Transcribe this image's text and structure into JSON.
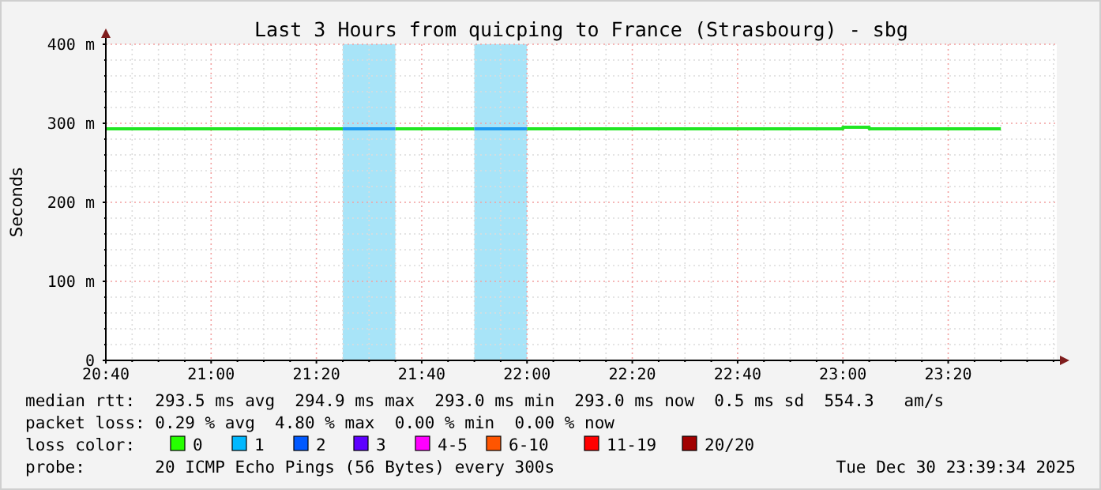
{
  "chart_data": {
    "type": "line",
    "title": "Last 3 Hours from quicping to France (Strasbourg) - sbg",
    "ylabel": "Seconds",
    "xlim": [
      20.6667,
      23.677
    ],
    "ylim": [
      0,
      400
    ],
    "xticks": [
      {
        "value": 20.6667,
        "label": "20:40"
      },
      {
        "value": 21,
        "label": "21:00"
      },
      {
        "value": 21.3333,
        "label": "21:20"
      },
      {
        "value": 21.6667,
        "label": "21:40"
      },
      {
        "value": 22,
        "label": "22:00"
      },
      {
        "value": 22.3333,
        "label": "22:20"
      },
      {
        "value": 22.6667,
        "label": "22:40"
      },
      {
        "value": 23,
        "label": "23:00"
      },
      {
        "value": 23.3333,
        "label": "23:20"
      },
      {
        "value": 20.75,
        "label": null
      },
      {
        "value": 20.8333,
        "label": null
      },
      {
        "value": 20.9167,
        "label": null
      },
      {
        "value": 21.0833,
        "label": null
      },
      {
        "value": 21.1667,
        "label": null
      },
      {
        "value": 21.25,
        "label": null
      },
      {
        "value": 21.4167,
        "label": null
      },
      {
        "value": 21.5,
        "label": null
      },
      {
        "value": 21.5833,
        "label": null
      },
      {
        "value": 21.75,
        "label": null
      },
      {
        "value": 21.8333,
        "label": null
      },
      {
        "value": 21.9167,
        "label": null
      },
      {
        "value": 22.0833,
        "label": null
      },
      {
        "value": 22.1667,
        "label": null
      },
      {
        "value": 22.25,
        "label": null
      },
      {
        "value": 22.4167,
        "label": null
      },
      {
        "value": 22.5,
        "label": null
      },
      {
        "value": 22.5833,
        "label": null
      },
      {
        "value": 22.75,
        "label": null
      },
      {
        "value": 22.8333,
        "label": null
      },
      {
        "value": 22.9167,
        "label": null
      },
      {
        "value": 23.0833,
        "label": null
      },
      {
        "value": 23.1667,
        "label": null
      },
      {
        "value": 23.25,
        "label": null
      },
      {
        "value": 23.4167,
        "label": null
      },
      {
        "value": 23.5,
        "label": null
      },
      {
        "value": 23.5833,
        "label": null
      },
      {
        "value": 23.6667,
        "label": null
      }
    ],
    "yticks": [
      0,
      {
        "value": 100,
        "label": "100 m"
      },
      {
        "value": 200,
        "label": "200 m"
      },
      {
        "value": 300,
        "label": "300 m"
      },
      {
        "value": 400,
        "label": "400 m"
      },
      {
        "value": 20,
        "label": null
      },
      {
        "value": 40,
        "label": null
      },
      {
        "value": 60,
        "label": null
      },
      {
        "value": 80,
        "label": null
      },
      {
        "value": 120,
        "label": null
      },
      {
        "value": 140,
        "label": null
      },
      {
        "value": 160,
        "label": null
      },
      {
        "value": 180,
        "label": null
      },
      {
        "value": 220,
        "label": null
      },
      {
        "value": 240,
        "label": null
      },
      {
        "value": 260,
        "label": null
      },
      {
        "value": 280,
        "label": null
      },
      {
        "value": 320,
        "label": null
      },
      {
        "value": 340,
        "label": null
      },
      {
        "value": 360,
        "label": null
      },
      {
        "value": 380,
        "label": null
      }
    ],
    "grid": true,
    "bands": [
      {
        "axis": "x",
        "from": 21.4167,
        "to": 21.5833,
        "color": "#a8e4f8"
      },
      {
        "axis": "x",
        "from": 21.8333,
        "to": 22.0,
        "color": "#a8e4f8"
      }
    ],
    "series": [
      {
        "color": "#22e622",
        "x": [
          20.6667,
          21.4167,
          21.4168,
          21.5833,
          21.8333,
          21.8334,
          22.0,
          23.0,
          23.0,
          23.0833,
          23.0833,
          23.5
        ],
        "values": [
          293,
          293,
          null,
          293,
          293,
          null,
          293,
          293,
          295,
          295,
          293,
          293
        ]
      },
      {
        "color": "#1e9cf0",
        "x": [
          21.4167,
          21.5833,
          21.7,
          21.8333,
          22.0
        ],
        "values": [
          293,
          293,
          null,
          293,
          293
        ]
      }
    ],
    "annotations": [
      "median rtt:  293.5 ms avg  294.9 ms max  293.0 ms min  293.0 ms now  0.5 ms sd  554.3   am/s",
      "packet loss: 0.29 % avg  4.80 % max  0.00 % min  0.00 % now",
      "loss color:",
      "0",
      "1",
      "2",
      "3",
      "4-5",
      "6-10",
      "11-19",
      "20/20",
      "probe:       20 ICMP Echo Pings (56 Bytes) every 300s",
      "Tue Dec 30 23:39:34 2025"
    ]
  }
}
